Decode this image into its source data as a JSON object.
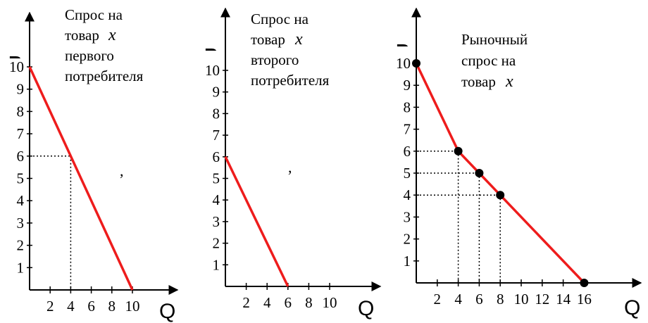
{
  "chart_data": [
    {
      "type": "line",
      "title_lines": [
        "Спрос на",
        "товар ",
        "первого",
        "потребителя"
      ],
      "title_var": "x",
      "ylabel": "P",
      "xlabel": "Q",
      "xticks": [
        2,
        4,
        6,
        8,
        10
      ],
      "yticks": [
        1,
        2,
        3,
        4,
        5,
        6,
        7,
        8,
        9,
        10
      ],
      "xlim": [
        0,
        11.5
      ],
      "ylim": [
        0,
        11.5
      ],
      "series": [
        {
          "x": [
            0,
            10
          ],
          "y": [
            10,
            0
          ]
        }
      ],
      "guides": [
        {
          "x": 4,
          "y": 6
        }
      ],
      "points": [],
      "color": "#ee1c1c",
      "stray_mark": ","
    },
    {
      "type": "line",
      "title_lines": [
        "Спрос на",
        "товар ",
        "второго",
        "потребителя"
      ],
      "title_var": "x",
      "ylabel": "P",
      "xlabel": "Q",
      "xticks": [
        2,
        4,
        6,
        8,
        10
      ],
      "yticks": [
        1,
        2,
        3,
        4,
        5,
        6,
        7,
        8,
        9,
        10
      ],
      "xlim": [
        0,
        12.6
      ],
      "ylim": [
        0,
        11.5
      ],
      "series": [
        {
          "x": [
            0,
            6
          ],
          "y": [
            6,
            0
          ]
        }
      ],
      "guides": [],
      "points": [],
      "color": "#ee1c1c",
      "stray_mark": ","
    },
    {
      "type": "line",
      "title_lines": [
        "Рыночный",
        "спрос на",
        "товар "
      ],
      "title_var": "x",
      "ylabel": "P",
      "xlabel": "Q",
      "xticks": [
        2,
        4,
        6,
        8,
        10,
        12,
        14,
        16
      ],
      "yticks": [
        1,
        2,
        3,
        4,
        5,
        6,
        7,
        8,
        9,
        10
      ],
      "xlim": [
        0,
        19
      ],
      "ylim": [
        0,
        12
      ],
      "series": [
        {
          "x": [
            0,
            4,
            6,
            8,
            16
          ],
          "y": [
            10,
            6,
            5,
            4,
            0
          ]
        }
      ],
      "guides": [
        {
          "x": 4,
          "y": 6
        },
        {
          "x": 6,
          "y": 5
        },
        {
          "x": 8,
          "y": 4
        }
      ],
      "points": [
        {
          "x": 0,
          "y": 10
        },
        {
          "x": 4,
          "y": 6
        },
        {
          "x": 6,
          "y": 5
        },
        {
          "x": 8,
          "y": 4
        },
        {
          "x": 16,
          "y": 0
        }
      ],
      "color": "#ee1c1c",
      "stray_mark": ""
    }
  ]
}
